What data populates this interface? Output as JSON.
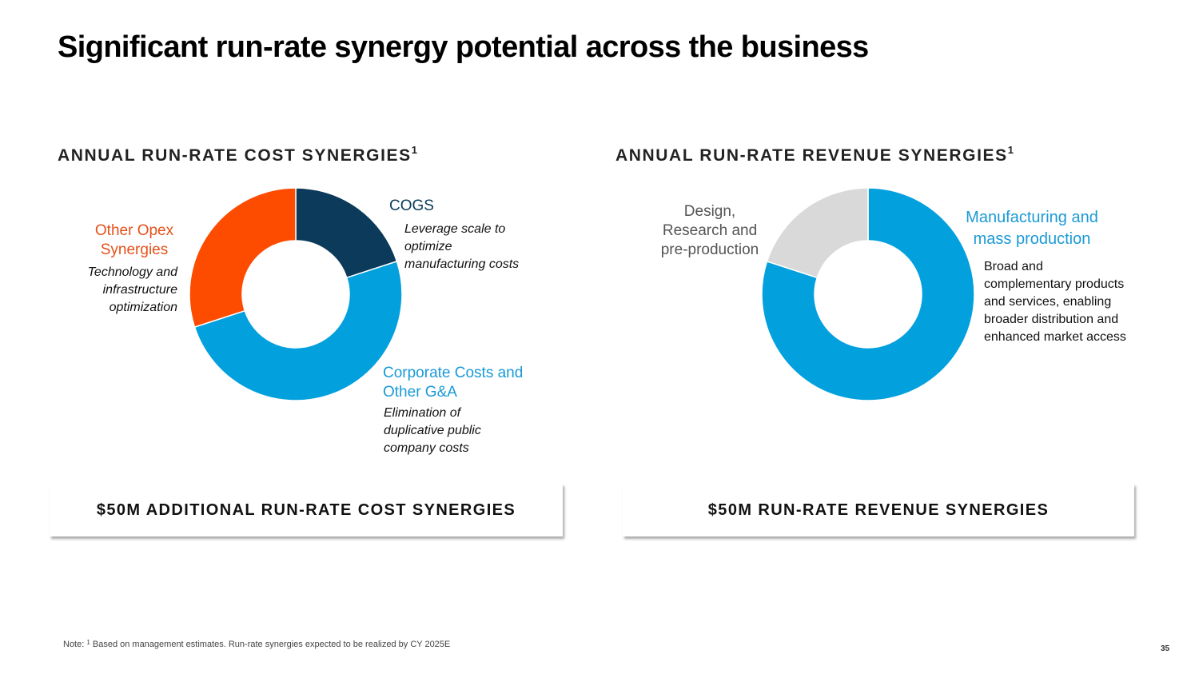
{
  "page": {
    "title": "Significant run-rate synergy potential across the business",
    "page_number": "35",
    "note": {
      "prefix": "Note: ",
      "marker": "1",
      "text": " Based on management estimates. Run-rate synergies expected to be realized by CY 2025E"
    }
  },
  "cost": {
    "heading": "ANNUAL RUN-RATE COST SYNERGIES",
    "heading_sup": "1",
    "callout": "$50M ADDITIONAL RUN-RATE COST SYNERGIES",
    "labels": {
      "cogs": "COGS",
      "cogs_desc": [
        "Leverage scale to",
        "optimize",
        "manufacturing costs"
      ],
      "corporate": [
        "Corporate Costs and",
        "Other G&A"
      ],
      "corporate_desc": [
        "Elimination of",
        "duplicative public",
        "company costs"
      ],
      "opex": [
        "Other Opex",
        "Synergies"
      ],
      "opex_desc": [
        "Technology and",
        "infrastructure",
        "optimization"
      ]
    }
  },
  "revenue": {
    "heading": "ANNUAL RUN-RATE REVENUE SYNERGIES",
    "heading_sup": "1",
    "callout": "$50M RUN-RATE REVENUE SYNERGIES",
    "labels": {
      "manufacturing": [
        "Manufacturing and",
        "mass production"
      ],
      "manufacturing_desc": [
        "Broad and",
        "complementary products",
        "and services, enabling",
        "broader distribution and",
        "enhanced market access"
      ],
      "design": [
        "Design,",
        "Research and",
        "pre-production"
      ]
    }
  },
  "colors": {
    "navy": "#0b3a5a",
    "blue": "#03a0de",
    "orange": "#fd4c00",
    "gray": "#d9d9d9",
    "opex_label": "#e5511a",
    "blue_label": "#1a9ad6",
    "design_label": "#555555"
  },
  "chart_data": [
    {
      "type": "pie",
      "subtype": "donut",
      "title": "ANNUAL RUN-RATE COST SYNERGIES",
      "total_label": "$50M",
      "categories": [
        "COGS",
        "Corporate Costs and Other G&A",
        "Other Opex Synergies"
      ],
      "values": [
        20,
        50,
        30
      ],
      "unit": "% of total (estimated from slice angles)",
      "colors": [
        "#0b3a5a",
        "#03a0de",
        "#fd4c00"
      ],
      "start_angle": "12 o'clock, clockwise"
    },
    {
      "type": "pie",
      "subtype": "donut",
      "title": "ANNUAL RUN-RATE REVENUE SYNERGIES",
      "total_label": "$50M",
      "categories": [
        "Manufacturing and mass production",
        "Design, Research and pre-production"
      ],
      "values": [
        80,
        20
      ],
      "unit": "% of total (estimated from slice angles)",
      "colors": [
        "#03a0de",
        "#d9d9d9"
      ],
      "start_angle": "12 o'clock, clockwise"
    }
  ]
}
